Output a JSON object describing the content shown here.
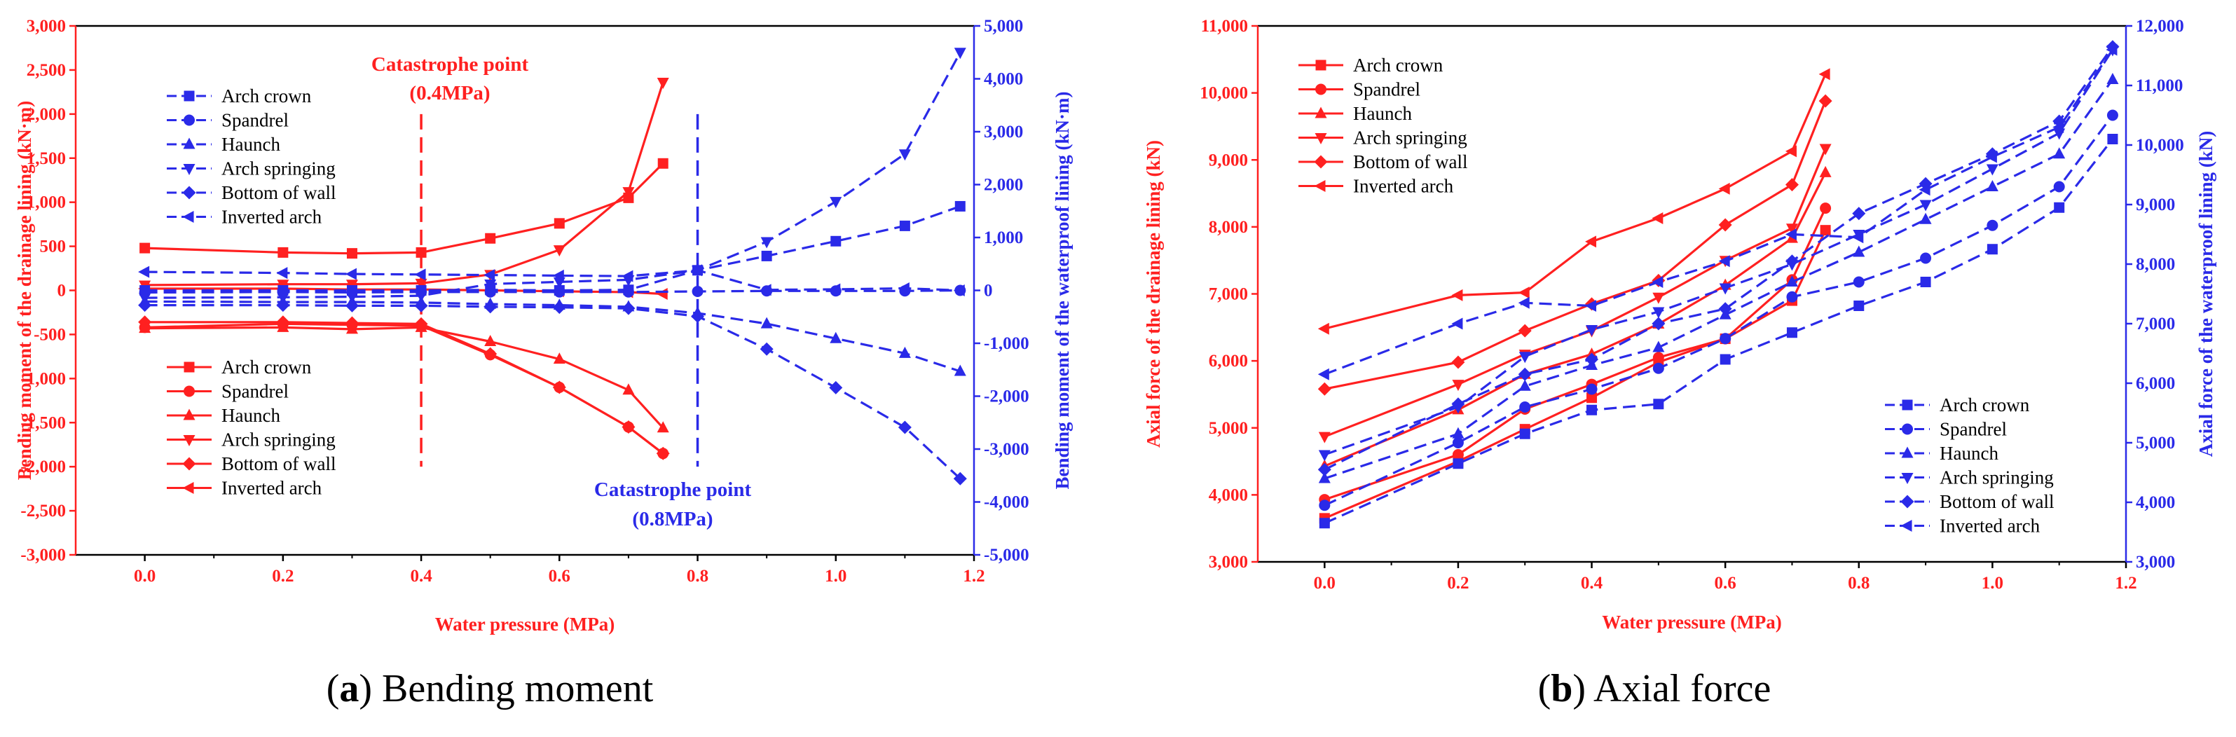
{
  "colors": {
    "red": "#ff2020",
    "blue": "#2a2ae8",
    "axis": "#000000"
  },
  "chart_data": [
    {
      "type": "line",
      "id": "a",
      "caption_letter": "a",
      "caption_text": "Bending moment",
      "title": "",
      "xlabel": "Water pressure (MPa)",
      "ylabel_left": "Bending moment of the drainage lining (kN·m)",
      "ylabel_right": "Bending moment of the waterproof lining (kN·m)",
      "xlim": [
        -0.1,
        1.2
      ],
      "xticks": [
        0.0,
        0.2,
        0.4,
        0.6,
        0.8,
        1.0,
        1.2
      ],
      "xtick_labels": [
        "0.0",
        "0.2",
        "0.4",
        "0.6",
        "0.8",
        "1.0",
        "1.2"
      ],
      "ylim_left": [
        -3000,
        3000
      ],
      "yticks_left": [
        -3000,
        -2500,
        -2000,
        -1500,
        -1000,
        -500,
        0,
        500,
        1000,
        1500,
        2000,
        2500,
        3000
      ],
      "ytick_labels_left": [
        "-3,000",
        "-2,500",
        "-2,000",
        "-1,500",
        "-1,000",
        "-500",
        "0",
        "500",
        "1,000",
        "1,500",
        "2,000",
        "2,500",
        "3,000"
      ],
      "ylim_right": [
        -5000,
        5000
      ],
      "yticks_right": [
        -5000,
        -4000,
        -3000,
        -2000,
        -1000,
        0,
        1000,
        2000,
        3000,
        4000,
        5000
      ],
      "ytick_labels_right": [
        "-5,000",
        "-4,000",
        "-3,000",
        "-2,000",
        "-1,000",
        "0",
        "1,000",
        "2,000",
        "3,000",
        "4,000",
        "5,000"
      ],
      "annotations": [
        {
          "lines": [
            "Catastrophe point",
            "(0.4MPa)"
          ],
          "color": "red",
          "x": 0.4
        },
        {
          "lines": [
            "Catastrophe point",
            "(0.8MPa)"
          ],
          "color": "blue",
          "x": 0.8
        }
      ],
      "vlines": [
        {
          "x": 0.4,
          "y_from": -2000,
          "y_to": 2000,
          "color": "red",
          "axis": "left"
        },
        {
          "x": 0.8,
          "y_from": -2000,
          "y_to": 2000,
          "color": "blue",
          "axis": "left"
        }
      ],
      "legend_blue": {
        "placement": "upper-left",
        "entries": [
          "Arch crown",
          "Spandrel",
          "Haunch",
          "Arch springing",
          "Bottom of wall",
          "Inverted arch"
        ]
      },
      "legend_red": {
        "placement": "lower-left",
        "entries": [
          "Arch crown",
          "Spandrel",
          "Haunch",
          "Arch springing",
          "Bottom of wall",
          "Inverted arch"
        ]
      },
      "series": [
        {
          "name": "Arch crown",
          "axis": "left",
          "color": "red",
          "marker": "square",
          "dash": false,
          "x": [
            0,
            0.2,
            0.3,
            0.4,
            0.5,
            0.6,
            0.7,
            0.75
          ],
          "y": [
            480,
            430,
            420,
            430,
            590,
            760,
            1050,
            1440
          ]
        },
        {
          "name": "Spandrel",
          "axis": "left",
          "color": "red",
          "marker": "circle",
          "dash": false,
          "x": [
            0,
            0.2,
            0.3,
            0.4,
            0.5,
            0.6,
            0.7,
            0.75
          ],
          "y": [
            -420,
            -380,
            -390,
            -400,
            -730,
            -1100,
            -1550,
            -1850
          ]
        },
        {
          "name": "Haunch",
          "axis": "left",
          "color": "red",
          "marker": "triangle-up",
          "dash": false,
          "x": [
            0,
            0.2,
            0.3,
            0.4,
            0.5,
            0.6,
            0.7,
            0.75
          ],
          "y": [
            -430,
            -420,
            -440,
            -420,
            -580,
            -780,
            -1130,
            -1560
          ]
        },
        {
          "name": "Arch springing",
          "axis": "left",
          "color": "red",
          "marker": "triangle-down",
          "dash": false,
          "x": [
            0,
            0.2,
            0.3,
            0.4,
            0.5,
            0.6,
            0.7,
            0.75
          ],
          "y": [
            60,
            70,
            70,
            80,
            180,
            460,
            1120,
            2360
          ]
        },
        {
          "name": "Bottom of wall",
          "axis": "left",
          "color": "red",
          "marker": "diamond",
          "dash": false,
          "x": [
            0,
            0.2,
            0.3,
            0.4,
            0.5,
            0.6,
            0.7,
            0.75
          ],
          "y": [
            -360,
            -360,
            -370,
            -380,
            -720,
            -1100,
            -1550,
            -1850
          ]
        },
        {
          "name": "Inverted arch",
          "axis": "left",
          "color": "red",
          "marker": "triangle-left",
          "dash": false,
          "x": [
            0,
            0.2,
            0.3,
            0.4,
            0.5,
            0.6,
            0.7,
            0.75
          ],
          "y": [
            20,
            20,
            10,
            10,
            0,
            -10,
            -20,
            -40
          ]
        },
        {
          "name": "Arch crown",
          "axis": "right",
          "color": "blue",
          "marker": "square",
          "dash": true,
          "x": [
            0,
            0.2,
            0.3,
            0.4,
            0.5,
            0.6,
            0.7,
            0.8,
            0.9,
            1.0,
            1.1,
            1.18
          ],
          "y": [
            0,
            0,
            0,
            0,
            10,
            0,
            10,
            380,
            650,
            930,
            1220,
            1590
          ]
        },
        {
          "name": "Spandrel",
          "axis": "right",
          "color": "blue",
          "marker": "circle",
          "dash": true,
          "x": [
            0,
            0.2,
            0.3,
            0.4,
            0.5,
            0.6,
            0.7,
            0.8,
            0.9,
            1.0,
            1.1,
            1.18
          ],
          "y": [
            -40,
            -30,
            -40,
            -30,
            -30,
            -30,
            -30,
            -20,
            -10,
            -10,
            -10,
            0
          ]
        },
        {
          "name": "Haunch",
          "axis": "right",
          "color": "blue",
          "marker": "triangle-up",
          "dash": true,
          "x": [
            0,
            0.2,
            0.3,
            0.4,
            0.5,
            0.6,
            0.7,
            0.8,
            0.9,
            1.0,
            1.1,
            1.18
          ],
          "y": [
            -210,
            -220,
            -220,
            -230,
            -260,
            -280,
            -310,
            -430,
            -630,
            -910,
            -1190,
            -1530
          ]
        },
        {
          "name": "Arch springing",
          "axis": "right",
          "color": "blue",
          "marker": "triangle-down",
          "dash": true,
          "x": [
            0,
            0.2,
            0.3,
            0.4,
            0.5,
            0.6,
            0.7,
            0.8,
            0.9,
            1.0,
            1.1,
            1.18
          ],
          "y": [
            -140,
            -130,
            -120,
            -100,
            120,
            160,
            200,
            380,
            920,
            1680,
            2580,
            4500
          ]
        },
        {
          "name": "Bottom of wall",
          "axis": "right",
          "color": "blue",
          "marker": "diamond",
          "dash": true,
          "x": [
            0,
            0.2,
            0.3,
            0.4,
            0.5,
            0.6,
            0.7,
            0.8,
            0.9,
            1.0,
            1.1,
            1.18
          ],
          "y": [
            -280,
            -280,
            -290,
            -290,
            -310,
            -320,
            -340,
            -490,
            -1110,
            -1840,
            -2590,
            -3560
          ]
        },
        {
          "name": "Inverted arch",
          "axis": "right",
          "color": "blue",
          "marker": "triangle-left",
          "dash": true,
          "x": [
            0,
            0.2,
            0.3,
            0.4,
            0.5,
            0.6,
            0.7,
            0.8,
            0.9,
            1.0,
            1.1,
            1.18
          ],
          "y": [
            350,
            330,
            310,
            300,
            290,
            280,
            270,
            380,
            10,
            20,
            40,
            0
          ]
        }
      ]
    },
    {
      "type": "line",
      "id": "b",
      "caption_letter": "b",
      "caption_text": "Axial force",
      "title": "",
      "xlabel": "Water pressure (MPa)",
      "ylabel_left": "Axial force of the drainage lining (kN)",
      "ylabel_right": "Axial force of the waterproof lining (kN)",
      "xlim": [
        -0.1,
        1.2
      ],
      "xticks": [
        0.0,
        0.2,
        0.4,
        0.6,
        0.8,
        1.0,
        1.2
      ],
      "xtick_labels": [
        "0.0",
        "0.2",
        "0.4",
        "0.6",
        "0.8",
        "1.0",
        "1.2"
      ],
      "ylim_left": [
        3000,
        11000
      ],
      "yticks_left": [
        3000,
        4000,
        5000,
        6000,
        7000,
        8000,
        9000,
        10000,
        11000
      ],
      "ytick_labels_left": [
        "3,000",
        "4,000",
        "5,000",
        "6,000",
        "7,000",
        "8,000",
        "9,000",
        "10,000",
        "11,000"
      ],
      "ylim_right": [
        3000,
        12000
      ],
      "yticks_right": [
        3000,
        4000,
        5000,
        6000,
        7000,
        8000,
        9000,
        10000,
        11000,
        12000
      ],
      "ytick_labels_right": [
        "3,000",
        "4,000",
        "5,000",
        "6,000",
        "7,000",
        "8,000",
        "9,000",
        "10,000",
        "11,000",
        "12,000"
      ],
      "annotations": [],
      "vlines": [],
      "legend_red": {
        "placement": "upper-left",
        "entries": [
          "Arch crown",
          "Spandrel",
          "Haunch",
          "Arch springing",
          "Bottom of wall",
          "Inverted arch"
        ]
      },
      "legend_blue": {
        "placement": "lower-right",
        "entries": [
          "Arch crown",
          "Spandrel",
          "Haunch",
          "Arch springing",
          "Bottom of wall",
          "Inverted arch"
        ]
      },
      "series": [
        {
          "name": "Arch crown",
          "axis": "left",
          "color": "red",
          "marker": "square",
          "dash": false,
          "x": [
            0,
            0.2,
            0.3,
            0.4,
            0.5,
            0.6,
            0.7,
            0.75
          ],
          "y": [
            3650,
            4500,
            4980,
            5450,
            5980,
            6330,
            6900,
            7950
          ]
        },
        {
          "name": "Spandrel",
          "axis": "left",
          "color": "red",
          "marker": "circle",
          "dash": false,
          "x": [
            0,
            0.2,
            0.3,
            0.4,
            0.5,
            0.6,
            0.7,
            0.75
          ],
          "y": [
            3930,
            4600,
            5280,
            5650,
            6050,
            6330,
            7210,
            8280
          ]
        },
        {
          "name": "Haunch",
          "axis": "left",
          "color": "red",
          "marker": "triangle-up",
          "dash": false,
          "x": [
            0,
            0.2,
            0.3,
            0.4,
            0.5,
            0.6,
            0.7,
            0.75
          ],
          "y": [
            4430,
            5270,
            5800,
            6100,
            6550,
            7130,
            7830,
            8810
          ]
        },
        {
          "name": "Arch springing",
          "axis": "left",
          "color": "red",
          "marker": "triangle-down",
          "dash": false,
          "x": [
            0,
            0.2,
            0.3,
            0.4,
            0.5,
            0.6,
            0.7,
            0.75
          ],
          "y": [
            4870,
            5650,
            6100,
            6450,
            6950,
            7500,
            7980,
            9170
          ]
        },
        {
          "name": "Bottom of wall",
          "axis": "left",
          "color": "red",
          "marker": "diamond",
          "dash": false,
          "x": [
            0,
            0.2,
            0.3,
            0.4,
            0.5,
            0.6,
            0.7,
            0.75
          ],
          "y": [
            5580,
            5980,
            6450,
            6850,
            7200,
            8030,
            8630,
            9880
          ]
        },
        {
          "name": "Inverted arch",
          "axis": "left",
          "color": "red",
          "marker": "triangle-left",
          "dash": false,
          "x": [
            0,
            0.2,
            0.3,
            0.4,
            0.5,
            0.6,
            0.7,
            0.75
          ],
          "y": [
            6480,
            6980,
            7020,
            7780,
            8130,
            8570,
            9130,
            10280
          ]
        },
        {
          "name": "Arch crown",
          "axis": "right",
          "color": "blue",
          "marker": "square",
          "dash": true,
          "x": [
            0,
            0.2,
            0.3,
            0.4,
            0.5,
            0.6,
            0.7,
            0.8,
            0.9,
            1.0,
            1.1,
            1.18
          ],
          "y": [
            3650,
            4650,
            5150,
            5550,
            5650,
            6400,
            6850,
            7300,
            7700,
            8250,
            8950,
            10100
          ]
        },
        {
          "name": "Spandrel",
          "axis": "right",
          "color": "blue",
          "marker": "circle",
          "dash": true,
          "x": [
            0,
            0.2,
            0.3,
            0.4,
            0.5,
            0.6,
            0.7,
            0.8,
            0.9,
            1.0,
            1.1,
            1.18
          ],
          "y": [
            3950,
            5000,
            5600,
            5900,
            6250,
            6750,
            7450,
            7700,
            8100,
            8650,
            9300,
            10500
          ]
        },
        {
          "name": "Haunch",
          "axis": "right",
          "color": "blue",
          "marker": "triangle-up",
          "dash": true,
          "x": [
            0,
            0.2,
            0.3,
            0.4,
            0.5,
            0.6,
            0.7,
            0.8,
            0.9,
            1.0,
            1.1,
            1.18
          ],
          "y": [
            4400,
            5150,
            5950,
            6300,
            6600,
            7150,
            7700,
            8200,
            8750,
            9300,
            9850,
            11100
          ]
        },
        {
          "name": "Arch springing",
          "axis": "right",
          "color": "blue",
          "marker": "triangle-down",
          "dash": true,
          "x": [
            0,
            0.2,
            0.3,
            0.4,
            0.5,
            0.6,
            0.7,
            0.8,
            0.9,
            1.0,
            1.1,
            1.18
          ],
          "y": [
            4800,
            5600,
            6450,
            6900,
            7200,
            7600,
            8000,
            8500,
            9000,
            9600,
            10200,
            11600
          ]
        },
        {
          "name": "Bottom of wall",
          "axis": "right",
          "color": "blue",
          "marker": "diamond",
          "dash": true,
          "x": [
            0,
            0.2,
            0.3,
            0.4,
            0.5,
            0.6,
            0.7,
            0.8,
            0.9,
            1.0,
            1.1,
            1.18
          ],
          "y": [
            4550,
            5650,
            6150,
            6400,
            7000,
            7250,
            8050,
            8850,
            9350,
            9850,
            10400,
            11650
          ]
        },
        {
          "name": "Inverted arch",
          "axis": "right",
          "color": "blue",
          "marker": "triangle-left",
          "dash": true,
          "x": [
            0,
            0.2,
            0.3,
            0.4,
            0.5,
            0.6,
            0.7,
            0.8,
            0.9,
            1.0,
            1.1,
            1.18
          ],
          "y": [
            6150,
            7000,
            7350,
            7300,
            7700,
            8050,
            8500,
            8450,
            9250,
            9800,
            10300,
            11600
          ]
        }
      ]
    }
  ]
}
